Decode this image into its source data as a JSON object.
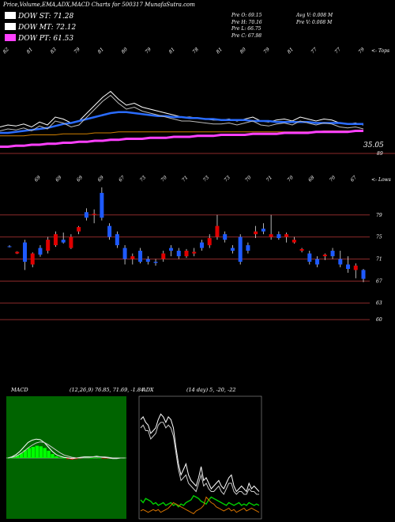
{
  "header": {
    "title": "Price,Volume,EMA,ADX,MACD Charts for 500317 MunafaSutra.com"
  },
  "legend": [
    {
      "label": "DOW ST: 71.28",
      "color": "#ffffff"
    },
    {
      "label": "DOW MT: 72.12",
      "color": "#ffffff"
    },
    {
      "label": "DOW PT: 61.53",
      "color": "#ff40ff"
    }
  ],
  "stats": {
    "col1": [
      "Pre   O: 69.15",
      "Pre   H: 70.16",
      "Pre   L: 66.75",
      "Pre   C: 67.98"
    ],
    "col2": [
      "Avg V: 0.008  M",
      "Pre   V: 0.008  M"
    ]
  },
  "colors": {
    "up": "#e00000",
    "down": "#1e5aff",
    "ema_blue": "#2a6cff",
    "ema_pink": "#ff40ff",
    "ema_orange": "#d08000",
    "grid_red": "#8b2a2a",
    "macd_bg": "#006400",
    "macd_hist": "#00ff00",
    "adx_green": "#00d000",
    "adx_orange": "#d07000"
  },
  "chart_data": [
    {
      "type": "line",
      "name": "ema_panel",
      "annotations": {
        "top_right": "<- Tops",
        "last_value": "35.05",
        "side_value": "89"
      },
      "top_labels": [
        "82",
        "81",
        "83",
        "79",
        "81",
        "80",
        "79",
        "81",
        "78",
        "81",
        "80",
        "79",
        "81",
        "77",
        "77",
        "79"
      ],
      "series": [
        {
          "name": "",
          "color": "#ffffff",
          "values": [
            30,
            32,
            31,
            33,
            30,
            35,
            32,
            40,
            38,
            34,
            36,
            44,
            52,
            60,
            66,
            58,
            52,
            54,
            50,
            48,
            46,
            44,
            42,
            40,
            40,
            39,
            38,
            37,
            37,
            38,
            36,
            38,
            40,
            36,
            35,
            37,
            38,
            36,
            40,
            38,
            36,
            38,
            37,
            34,
            33,
            34,
            32
          ]
        },
        {
          "name": "",
          "color": "#2a6cff",
          "values": [
            24,
            24,
            25,
            26,
            27,
            28,
            29,
            31,
            33,
            34,
            36,
            38,
            40,
            42,
            44,
            45,
            45,
            44,
            43,
            42,
            41,
            41,
            40,
            40,
            39,
            39,
            38,
            38,
            37,
            37,
            37,
            37,
            36,
            36,
            36,
            35,
            35,
            35,
            35,
            35,
            34,
            34,
            34,
            34,
            33,
            33,
            33
          ]
        },
        {
          "name": "",
          "color": "#d08000",
          "values": [
            21,
            21,
            21,
            21,
            22,
            22,
            22,
            22,
            23,
            23,
            23,
            23,
            24,
            24,
            24,
            25,
            25,
            25,
            25,
            25,
            25,
            25,
            25,
            25,
            25,
            25,
            25,
            25,
            25,
            25,
            25,
            25,
            25,
            25,
            25,
            25,
            25,
            25,
            25,
            25,
            25,
            26,
            26,
            26,
            26,
            26,
            26
          ]
        },
        {
          "name": "",
          "color": "#ff40ff",
          "values": [
            10,
            10,
            11,
            11,
            12,
            12,
            13,
            13,
            14,
            14,
            15,
            15,
            16,
            16,
            17,
            17,
            18,
            18,
            18,
            19,
            19,
            19,
            20,
            20,
            20,
            21,
            21,
            21,
            22,
            22,
            22,
            22,
            23,
            23,
            23,
            23,
            24,
            24,
            24,
            24,
            25,
            25,
            25,
            25,
            25,
            26,
            26
          ]
        }
      ]
    },
    {
      "type": "candlestick",
      "name": "price_panel",
      "annotations": {
        "top_right": "<- Lows"
      },
      "y_ticks": [
        79,
        75,
        71,
        67,
        63,
        60
      ],
      "ylim": [
        58,
        86
      ],
      "low_labels": [
        "69",
        "69",
        "69",
        "69",
        "67",
        "73",
        "70",
        "71",
        "73",
        "73",
        "70",
        "71",
        "70",
        "68",
        "70",
        "67"
      ],
      "candles": [
        [
          73.3,
          73.5,
          73.1,
          73.2
        ],
        [
          72.0,
          72.4,
          71.9,
          72.3
        ],
        [
          74.0,
          74.5,
          69.0,
          70.5
        ],
        [
          70.0,
          72.2,
          69.5,
          72.0
        ],
        [
          73.0,
          73.5,
          71.4,
          71.8
        ],
        [
          72.5,
          75.0,
          72.0,
          74.5
        ],
        [
          73.5,
          76.0,
          73.2,
          75.5
        ],
        [
          74.5,
          75.8,
          73.8,
          74.0
        ],
        [
          73.0,
          75.5,
          72.8,
          75.0
        ],
        [
          76.0,
          77.0,
          75.5,
          76.8
        ],
        [
          79.5,
          80.2,
          78.0,
          78.5
        ],
        [
          79.0,
          80.0,
          77.5,
          79.2
        ],
        [
          83.0,
          84.0,
          78.0,
          78.5
        ],
        [
          77.0,
          77.5,
          74.5,
          75.0
        ],
        [
          75.5,
          76.0,
          73.0,
          73.5
        ],
        [
          73.0,
          73.5,
          70.0,
          71.0
        ],
        [
          71.0,
          72.0,
          70.0,
          71.5
        ],
        [
          72.5,
          73.0,
          70.2,
          70.5
        ],
        [
          71.0,
          71.5,
          70.0,
          70.5
        ],
        [
          70.5,
          71.0,
          69.8,
          70.3
        ],
        [
          71.0,
          72.5,
          70.5,
          72.0
        ],
        [
          73.0,
          73.5,
          71.5,
          72.5
        ],
        [
          72.5,
          73.0,
          71.0,
          71.5
        ],
        [
          71.5,
          72.8,
          71.2,
          72.5
        ],
        [
          72.0,
          73.0,
          71.5,
          72.3
        ],
        [
          74.0,
          74.5,
          72.5,
          73.0
        ],
        [
          73.5,
          75.5,
          73.0,
          74.8
        ],
        [
          75.0,
          79.0,
          74.5,
          77.0
        ],
        [
          75.5,
          76.0,
          74.0,
          74.5
        ],
        [
          73.0,
          73.5,
          72.0,
          72.5
        ],
        [
          75.0,
          75.5,
          70.0,
          70.5
        ],
        [
          73.5,
          74.0,
          72.0,
          72.5
        ],
        [
          75.5,
          77.0,
          74.8,
          76.0
        ],
        [
          76.5,
          77.5,
          75.5,
          76.0
        ],
        [
          75.0,
          79.0,
          74.5,
          75.5
        ],
        [
          75.5,
          76.0,
          74.5,
          74.8
        ],
        [
          75.0,
          75.8,
          74.0,
          75.5
        ],
        [
          74.0,
          75.0,
          73.8,
          74.5
        ],
        [
          72.5,
          73.0,
          72.2,
          72.8
        ],
        [
          72.0,
          72.5,
          70.0,
          70.5
        ],
        [
          71.0,
          71.5,
          69.5,
          70.0
        ],
        [
          71.5,
          72.0,
          70.8,
          71.8
        ],
        [
          72.5,
          73.0,
          71.0,
          71.5
        ],
        [
          71.0,
          72.5,
          69.5,
          70.0
        ],
        [
          70.0,
          71.5,
          68.5,
          69.2
        ],
        [
          69.0,
          70.2,
          67.5,
          69.8
        ],
        [
          69.0,
          69.2,
          66.8,
          67.4
        ]
      ]
    },
    {
      "type": "line",
      "name": "macd_panel",
      "title": "MACD",
      "values_text": "(12,26,9) 76.85, 71.69, -1.84",
      "series": [
        {
          "name": "",
          "color": "#ffffff",
          "values": [
            0,
            0.2,
            0.6,
            1.2,
            2.0,
            2.8,
            3.2,
            3.4,
            3.3,
            2.8,
            2.0,
            1.2,
            0.6,
            0.3,
            0.1,
            0.0,
            -0.1,
            0.0,
            0.1,
            0.2,
            0.2,
            0.2,
            0.3,
            0.2,
            0.1,
            0.0,
            -0.1,
            -0.1,
            0.0,
            0.0
          ]
        },
        {
          "name": "",
          "color": "#cccccc",
          "values": [
            0,
            0.1,
            0.3,
            0.7,
            1.2,
            1.8,
            2.3,
            2.7,
            2.9,
            2.8,
            2.4,
            1.9,
            1.4,
            0.9,
            0.5,
            0.3,
            0.1,
            0.0,
            0.0,
            0.1,
            0.1,
            0.2,
            0.2,
            0.2,
            0.2,
            0.1,
            0.0,
            0.0,
            0.0,
            0.0
          ]
        }
      ],
      "histogram": [
        0,
        0.2,
        0.5,
        0.9,
        1.4,
        1.8,
        2.0,
        2.2,
        2.1,
        1.8,
        1.3,
        0.7,
        0.3,
        0.1,
        0.0,
        -0.2,
        -0.3,
        -0.2,
        -0.1,
        0.1,
        0.1,
        0.0,
        0.1,
        0.0,
        -0.1,
        -0.1,
        -0.1,
        -0.1,
        0.0,
        0.0
      ]
    },
    {
      "type": "line",
      "name": "adx_panel",
      "title": "ADX",
      "values_text": "(14  day) 5, -20, -22",
      "series": [
        {
          "name": "",
          "color": "#ffffff",
          "values": [
            70,
            72,
            68,
            66,
            60,
            62,
            64,
            70,
            74,
            72,
            68,
            72,
            70,
            64,
            50,
            38,
            30,
            34,
            38,
            30,
            26,
            24,
            22,
            28,
            36,
            26,
            28,
            24,
            20,
            22,
            24,
            26,
            22,
            20,
            24,
            28,
            30,
            22,
            18,
            20,
            22,
            20,
            18,
            24,
            20,
            22,
            20,
            18
          ]
        },
        {
          "name": "",
          "color": "#cccccc",
          "values": [
            64,
            66,
            62,
            62,
            56,
            58,
            60,
            66,
            68,
            68,
            64,
            66,
            64,
            58,
            46,
            34,
            26,
            28,
            30,
            24,
            22,
            20,
            18,
            24,
            30,
            22,
            24,
            20,
            18,
            18,
            20,
            22,
            18,
            16,
            20,
            24,
            24,
            18,
            16,
            18,
            18,
            16,
            16,
            20,
            18,
            18,
            16,
            16
          ]
        },
        {
          "name": "",
          "color": "#00d000",
          "values": [
            12,
            10,
            13,
            12,
            11,
            9,
            10,
            8,
            9,
            10,
            8,
            9,
            10,
            8,
            9,
            7,
            9,
            8,
            10,
            11,
            12,
            15,
            14,
            13,
            11,
            10,
            9,
            12,
            14,
            13,
            12,
            11,
            10,
            9,
            8,
            10,
            9,
            8,
            9,
            10,
            8,
            9,
            8,
            10,
            9,
            8,
            9,
            8
          ]
        },
        {
          "name": "",
          "color": "#d07000",
          "values": [
            4,
            5,
            4,
            3,
            4,
            5,
            4,
            5,
            3,
            4,
            5,
            6,
            8,
            10,
            9,
            8,
            7,
            6,
            5,
            4,
            3,
            2,
            4,
            5,
            6,
            8,
            14,
            12,
            10,
            9,
            7,
            6,
            5,
            4,
            5,
            6,
            4,
            5,
            3,
            4,
            5,
            6,
            4,
            5,
            6,
            5,
            4,
            3
          ]
        }
      ]
    }
  ]
}
